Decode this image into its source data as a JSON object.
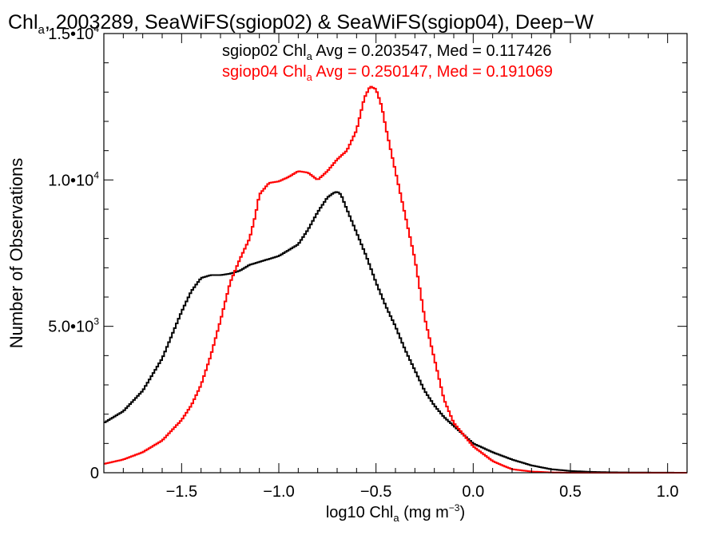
{
  "chart_data": {
    "type": "line",
    "title": {
      "pre": "Chl",
      "sub": "a",
      "post": ", 2003289, SeaWiFS(sgiop02) & SeaWiFS(sgiop04), Deep−W"
    },
    "xlabel": {
      "pre": "log10 Chl",
      "sub": "a",
      "mid": " (mg m",
      "sup": "−3",
      "post": ")"
    },
    "ylabel": "Number of Observations",
    "xlim": [
      -1.9,
      1.1
    ],
    "ylim": [
      0,
      15000
    ],
    "x_ticks": [
      {
        "value": -1.5,
        "label": "−1.5"
      },
      {
        "value": -1.0,
        "label": "−1.0"
      },
      {
        "value": -0.5,
        "label": "−0.5"
      },
      {
        "value": 0.0,
        "label": "0.0"
      },
      {
        "value": 0.5,
        "label": "0.5"
      },
      {
        "value": 1.0,
        "label": "1.0"
      }
    ],
    "y_ticks": [
      {
        "value": 0,
        "label": "0",
        "exp": ""
      },
      {
        "value": 5000,
        "label": "5.0•10",
        "exp": "3"
      },
      {
        "value": 10000,
        "label": "1.0•10",
        "exp": "4"
      },
      {
        "value": 15000,
        "label": "1.5•10",
        "exp": "4"
      }
    ],
    "annotations": [
      {
        "color": "#000000",
        "pre": "sgiop02 Chl",
        "sub": "a",
        "post": " Avg = 0.203547, Med = 0.117426"
      },
      {
        "color": "#ff0000",
        "pre": "sgiop04 Chl",
        "sub": "a",
        "post": " Avg = 0.250147, Med = 0.191069"
      }
    ],
    "series": [
      {
        "color": "#000000",
        "x": [
          -1.9,
          -1.8,
          -1.7,
          -1.6,
          -1.55,
          -1.5,
          -1.45,
          -1.4,
          -1.35,
          -1.3,
          -1.25,
          -1.2,
          -1.15,
          -1.1,
          -1.05,
          -1.0,
          -0.95,
          -0.9,
          -0.85,
          -0.8,
          -0.75,
          -0.72,
          -0.7,
          -0.68,
          -0.65,
          -0.6,
          -0.55,
          -0.5,
          -0.45,
          -0.4,
          -0.35,
          -0.3,
          -0.25,
          -0.2,
          -0.15,
          -0.1,
          -0.05,
          0.0,
          0.1,
          0.2,
          0.3,
          0.4,
          0.5,
          0.6,
          0.7,
          0.8,
          1.1
        ],
        "y": [
          1700,
          2100,
          2800,
          3900,
          4700,
          5500,
          6200,
          6650,
          6750,
          6750,
          6800,
          6900,
          7100,
          7200,
          7300,
          7400,
          7600,
          7800,
          8300,
          8900,
          9400,
          9550,
          9600,
          9500,
          9000,
          8200,
          7400,
          6500,
          5700,
          5000,
          4200,
          3500,
          2800,
          2300,
          1900,
          1600,
          1300,
          1000,
          700,
          450,
          250,
          120,
          60,
          30,
          15,
          8,
          0
        ]
      },
      {
        "color": "#ff0000",
        "x": [
          -1.9,
          -1.8,
          -1.7,
          -1.6,
          -1.5,
          -1.45,
          -1.4,
          -1.35,
          -1.3,
          -1.25,
          -1.2,
          -1.15,
          -1.12,
          -1.1,
          -1.05,
          -1.0,
          -0.95,
          -0.9,
          -0.85,
          -0.8,
          -0.75,
          -0.7,
          -0.65,
          -0.6,
          -0.56,
          -0.53,
          -0.5,
          -0.47,
          -0.45,
          -0.4,
          -0.35,
          -0.3,
          -0.25,
          -0.2,
          -0.15,
          -0.1,
          -0.05,
          0.0,
          0.05,
          0.1,
          0.15,
          0.2,
          0.3,
          0.4,
          0.5,
          1.1
        ],
        "y": [
          300,
          450,
          700,
          1100,
          1800,
          2300,
          3000,
          4000,
          5200,
          6500,
          7300,
          8000,
          8800,
          9500,
          9900,
          9950,
          10100,
          10300,
          10250,
          10000,
          10300,
          10700,
          11000,
          11700,
          12800,
          13200,
          13100,
          12500,
          11800,
          10300,
          8800,
          7300,
          5300,
          3900,
          2500,
          1700,
          1300,
          900,
          650,
          400,
          250,
          120,
          40,
          10,
          0,
          0
        ]
      }
    ]
  }
}
